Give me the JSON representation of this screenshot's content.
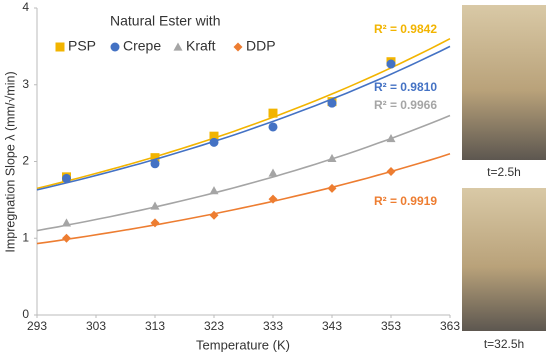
{
  "chart_data": {
    "type": "scatter",
    "legend_title": "Natural Ester with",
    "x_label": "Temperature (K)",
    "y_label": "Impregnation Slope λ (mm/√min)",
    "xlim": [
      293,
      363
    ],
    "xticks": [
      293,
      303,
      313,
      323,
      333,
      343,
      353,
      363
    ],
    "ylim": [
      0,
      4
    ],
    "yticks": [
      0,
      1,
      2,
      3,
      4
    ],
    "grid": false,
    "legend": "top-left",
    "series": [
      {
        "name": "PSP",
        "color": "#f2b400",
        "marker": "square",
        "x": [
          298,
          313,
          323,
          333,
          343,
          353
        ],
        "values": [
          1.8,
          2.05,
          2.33,
          2.63,
          2.78,
          3.3
        ],
        "fit": {
          "x": [
            293,
            363
          ],
          "y": [
            1.65,
            3.6
          ]
        },
        "fit_label": "R² = 0.9842"
      },
      {
        "name": "Crepe",
        "color": "#4472c4",
        "marker": "circle",
        "x": [
          298,
          313,
          323,
          333,
          343,
          353
        ],
        "values": [
          1.78,
          1.97,
          2.25,
          2.45,
          2.76,
          3.27
        ],
        "fit": {
          "x": [
            293,
            363
          ],
          "y": [
            1.63,
            3.5
          ]
        },
        "fit_label": "R² = 0.9810"
      },
      {
        "name": "Kraft",
        "color": "#a5a5a5",
        "marker": "triangle",
        "x": [
          298,
          313,
          323,
          333,
          343,
          353
        ],
        "values": [
          1.2,
          1.42,
          1.62,
          1.85,
          2.04,
          2.3
        ],
        "fit": {
          "x": [
            293,
            363
          ],
          "y": [
            1.1,
            2.6
          ]
        },
        "fit_label": "R² = 0.9966"
      },
      {
        "name": "DDP",
        "color": "#ed7d31",
        "marker": "diamond",
        "x": [
          298,
          313,
          323,
          333,
          343,
          353
        ],
        "values": [
          1.0,
          1.2,
          1.3,
          1.51,
          1.65,
          1.87
        ],
        "fit": {
          "x": [
            293,
            363
          ],
          "y": [
            0.93,
            2.1
          ]
        },
        "fit_label": "R² = 0.9919"
      }
    ]
  },
  "photos": [
    {
      "caption": "t=2.5h"
    },
    {
      "caption": "t=32.5h"
    }
  ]
}
